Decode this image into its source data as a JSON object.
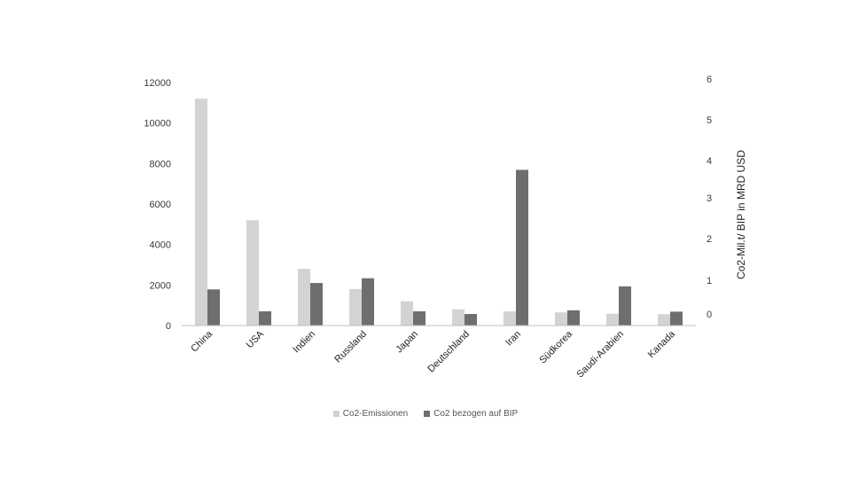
{
  "chart_data": {
    "type": "bar",
    "title": "",
    "categories": [
      "China",
      "USA",
      "Indien",
      "Russland",
      "Japan",
      "Deutschland",
      "Iran",
      "Südkorea",
      "Saudi-Arabien",
      "Kanada"
    ],
    "series": [
      {
        "name": "Co2-Emissionen",
        "axis": "left",
        "color": "#d3d3d3",
        "values": [
          11200,
          5200,
          2800,
          1800,
          1200,
          800,
          700,
          650,
          580,
          560
        ]
      },
      {
        "name": "Co2 bezogen auf BIP",
        "axis": "right",
        "color": "#6e6e6e",
        "values": [
          0.73,
          0.08,
          0.92,
          1.05,
          0.08,
          0.0,
          3.75,
          0.11,
          0.82,
          0.07
        ]
      }
    ],
    "yleft": {
      "label": "",
      "ticks": [
        0,
        2000,
        4000,
        6000,
        8000,
        10000,
        12000
      ],
      "ylim": [
        0,
        12000
      ]
    },
    "yright": {
      "label": "Co2-Mil.t/ BIP in MRD USD",
      "ticks": [
        0,
        1,
        2,
        3,
        4,
        5,
        6
      ],
      "note": "right-axis tick spacing in the original is non-linear"
    },
    "xlabel": "",
    "grid": false,
    "legend_position": "bottom"
  }
}
